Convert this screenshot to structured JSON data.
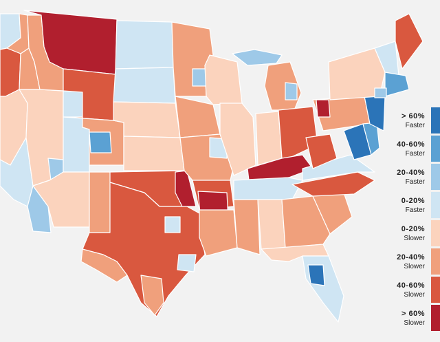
{
  "colors": {
    "background": "#f2f2f2",
    "faster_60_plus": "#2b74b8",
    "faster_40_60": "#5ba1d3",
    "faster_20_40": "#9ec9e8",
    "faster_0_20": "#cfe5f3",
    "slower_0_20": "#fbd3bd",
    "slower_20_40": "#f0a07c",
    "slower_40_60": "#d9583f",
    "slower_60_plus": "#b11f2e"
  },
  "legend": {
    "items": [
      {
        "range": "> 60%",
        "direction": "Faster",
        "color": "#2b74b8"
      },
      {
        "range": "40-60%",
        "direction": "Faster",
        "color": "#5ba1d3"
      },
      {
        "range": "20-40%",
        "direction": "Faster",
        "color": "#9ec9e8"
      },
      {
        "range": "0-20%",
        "direction": "Faster",
        "color": "#cfe5f3"
      },
      {
        "range": "0-20%",
        "direction": "Slower",
        "color": "#fbd3bd"
      },
      {
        "range": "20-40%",
        "direction": "Slower",
        "color": "#f0a07c"
      },
      {
        "range": "40-60%",
        "direction": "Slower",
        "color": "#d9583f"
      },
      {
        "range": "> 60%",
        "direction": "Slower",
        "color": "#b11f2e"
      }
    ]
  }
}
